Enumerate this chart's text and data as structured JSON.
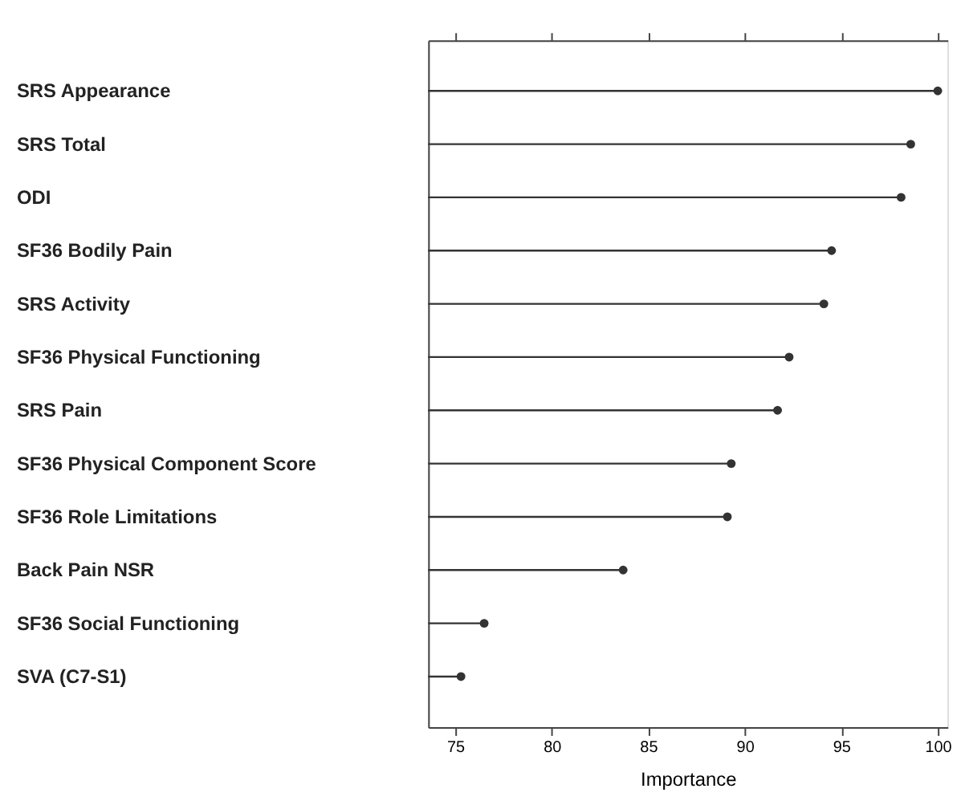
{
  "chart_data": {
    "type": "lollipop",
    "orientation": "horizontal",
    "xlabel": "Importance",
    "categories": [
      "SRS Appearance",
      "SRS Total",
      "ODI",
      "SF36 Bodily Pain",
      "SRS Activity",
      "SF36 Physical Functioning",
      "SRS Pain",
      "SF36 Physical Component Score",
      "SF36 Role Limitations",
      "Back Pain NSR",
      "SF36 Social Functioning",
      "SVA (C7-S1)"
    ],
    "values": [
      100.0,
      98.6,
      98.1,
      94.5,
      94.1,
      92.3,
      91.7,
      89.3,
      89.1,
      83.7,
      76.5,
      75.3
    ],
    "color": "#333333",
    "marker": "circle",
    "xlim": [
      73.6,
      100.5
    ],
    "xticks": [
      75,
      80,
      85,
      90,
      95,
      100
    ],
    "grid": false
  }
}
